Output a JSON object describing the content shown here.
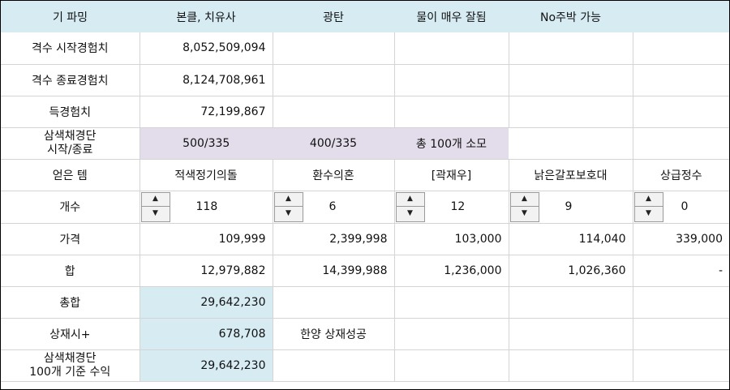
{
  "header": [
    "기 파밍",
    "본클, 치유사",
    "광탄",
    "물이 매우 잘됨",
    "No주박 가능",
    ""
  ],
  "rows": {
    "start_exp": {
      "label": "격수 시작경험치",
      "value": "8,052,509,094"
    },
    "end_exp": {
      "label": "격수 종료경험치",
      "value": "8,124,708,961"
    },
    "gain_exp": {
      "label": "득경험치",
      "value": "72,199,867"
    },
    "sanseak": {
      "label_line1": "삼색채경단",
      "label_line2": "시작/종료",
      "c1": "500/335",
      "c2": "400/335",
      "c3": "총 100개 소모"
    },
    "items": {
      "label": "얻은 템",
      "names": [
        "적색정기의돌",
        "환수의혼",
        "[곽재우]",
        "낡은갈포보호대",
        "상급정수"
      ]
    },
    "count": {
      "label": "개수",
      "values": [
        "118",
        "6",
        "12",
        "9",
        "0"
      ]
    },
    "price": {
      "label": "가격",
      "values": [
        "109,999",
        "2,399,998",
        "103,000",
        "114,040",
        "339,000"
      ]
    },
    "sum": {
      "label": "합",
      "values": [
        "12,979,882",
        "14,399,988",
        "1,236,000",
        "1,026,360",
        "-"
      ]
    },
    "total": {
      "label": "총합",
      "value": "29,642,230"
    },
    "plus": {
      "label": "상재시+",
      "value": "678,708",
      "note": "한양 상재성공"
    },
    "per100": {
      "label_line1": "삼색채경단",
      "label_line2": "100개 기준 수익",
      "value": "29,642,230"
    }
  },
  "spinner_icons": {
    "up": "triangle-up-icon",
    "down": "triangle-down-icon"
  }
}
